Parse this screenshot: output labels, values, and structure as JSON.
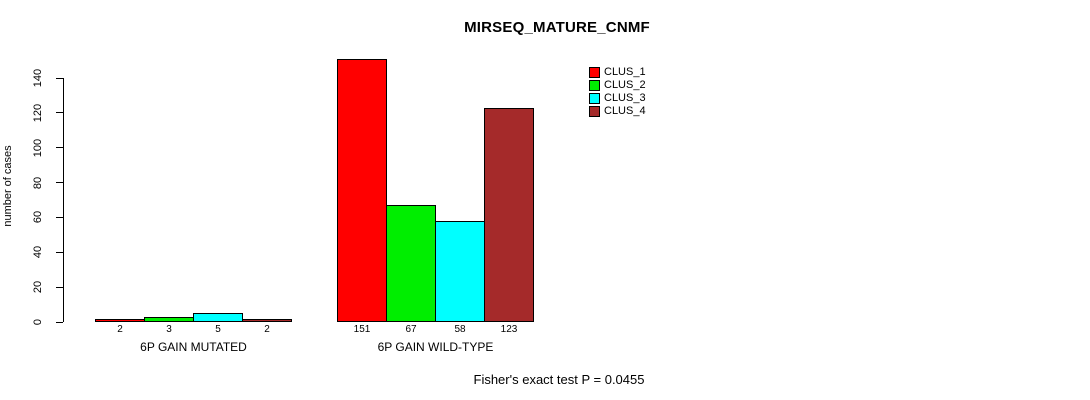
{
  "chart_data": {
    "type": "bar",
    "title": "MIRSEQ_MATURE_CNMF",
    "xlabel": "",
    "ylabel": "number of cases",
    "ylim": [
      0,
      140
    ],
    "yticks": [
      0,
      20,
      40,
      60,
      80,
      100,
      120,
      140
    ],
    "categories": [
      "6P GAIN MUTATED",
      "6P GAIN WILD-TYPE"
    ],
    "series": [
      {
        "name": "CLUS_1",
        "color": "#FF0000",
        "values": [
          2,
          151
        ]
      },
      {
        "name": "CLUS_2",
        "color": "#00EE00",
        "values": [
          3,
          67
        ]
      },
      {
        "name": "CLUS_3",
        "color": "#00FFFF",
        "values": [
          5,
          58
        ]
      },
      {
        "name": "CLUS_4",
        "color": "#A52A2A",
        "values": [
          2,
          123
        ]
      }
    ],
    "bar_value_labels": [
      [
        2,
        3,
        5,
        2
      ],
      [
        151,
        67,
        58,
        123
      ]
    ],
    "legend_position": "top-right",
    "legend_entries": [
      "CLUS_1",
      "CLUS_2",
      "CLUS_3",
      "CLUS_4"
    ],
    "grid": false,
    "caption": "Fisher's exact test P = 0.0455",
    "axis_color": "#000000",
    "background_color": "#FFFFFF"
  }
}
